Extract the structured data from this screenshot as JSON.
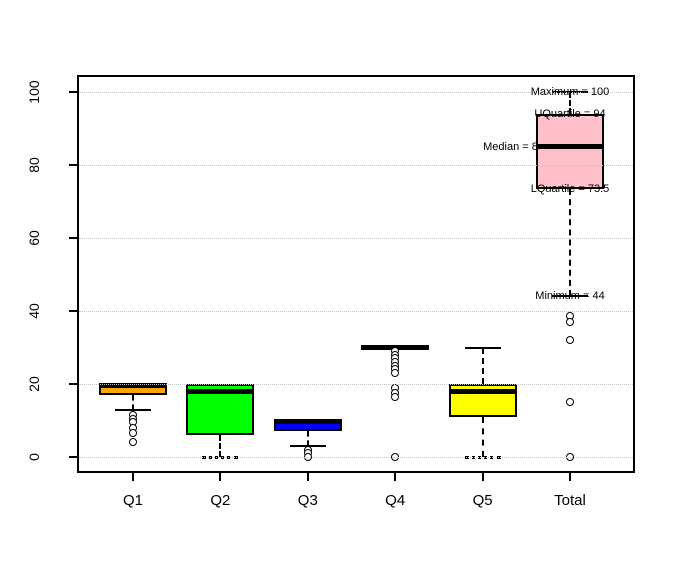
{
  "chart_data": {
    "type": "boxplot",
    "title": "",
    "categories": [
      "Q1",
      "Q2",
      "Q3",
      "Q4",
      "Q5",
      "Total"
    ],
    "y_ticks": [
      0,
      20,
      40,
      60,
      80,
      100
    ],
    "ylim": [
      0,
      100
    ],
    "grid": {
      "horizontal": true,
      "style": "dotted",
      "drawn_over_boxes": true
    },
    "series": [
      {
        "name": "Q1",
        "fill": "#FFA500",
        "q1": 17,
        "median": 19.5,
        "q3": 20,
        "whisker_low": 13,
        "whisker_high": null,
        "cap_low": "solid",
        "cap_high": null,
        "outliers": [
          11.5,
          10.5,
          9.5,
          8,
          6.5,
          4
        ]
      },
      {
        "name": "Q2",
        "fill": "#00FF00",
        "q1": 6,
        "median": 18,
        "q3": 20,
        "whisker_low": 0,
        "whisker_high": null,
        "cap_low": "dotted",
        "cap_high": null,
        "outliers": []
      },
      {
        "name": "Q3",
        "fill": "#0000FF",
        "q1": 7,
        "median": 9.8,
        "q3": 10,
        "whisker_low": 3,
        "whisker_high": null,
        "cap_low": "solid",
        "cap_high": null,
        "outliers": [
          2,
          1,
          0
        ]
      },
      {
        "name": "Q4",
        "fill": "#000000",
        "q1": 30,
        "median": 30,
        "q3": 30,
        "collapsed": true,
        "whisker_low": null,
        "whisker_high": null,
        "cap_low": null,
        "cap_high": null,
        "outliers": [
          29,
          28,
          27,
          26,
          25,
          24,
          23,
          19,
          17.5,
          16.5,
          0
        ]
      },
      {
        "name": "Q5",
        "fill": "#FFFF00",
        "q1": 11,
        "median": 18,
        "q3": 20,
        "whisker_low": 0,
        "whisker_high": 30,
        "cap_low": "dotted",
        "cap_high": "solid",
        "outliers": []
      },
      {
        "name": "Total",
        "fill": "#FFC0CB",
        "q1": 73.5,
        "median": 85,
        "q3": 94,
        "whisker_low": 44,
        "whisker_high": 100,
        "cap_low": "solid",
        "cap_high": "solid",
        "outliers": [
          38.5,
          37,
          32,
          15,
          0
        ]
      }
    ],
    "annotations": [
      {
        "id": "maximum",
        "text": "Maximum = 100",
        "value": 100,
        "placement": "center"
      },
      {
        "id": "uquartile",
        "text": "UQuartile = 94",
        "value": 94,
        "placement": "center"
      },
      {
        "id": "median",
        "text": "Median = 85",
        "value": 85,
        "placement": "left-of-box"
      },
      {
        "id": "lquartile",
        "text": "LQuartile = 73.5",
        "value": 73.5,
        "placement": "center"
      },
      {
        "id": "minimum",
        "text": "Minimum = 44",
        "value": 44,
        "placement": "center"
      }
    ],
    "colors": {
      "axis": "#000000",
      "grid": "#c3c3c3",
      "background": "#ffffff"
    }
  }
}
